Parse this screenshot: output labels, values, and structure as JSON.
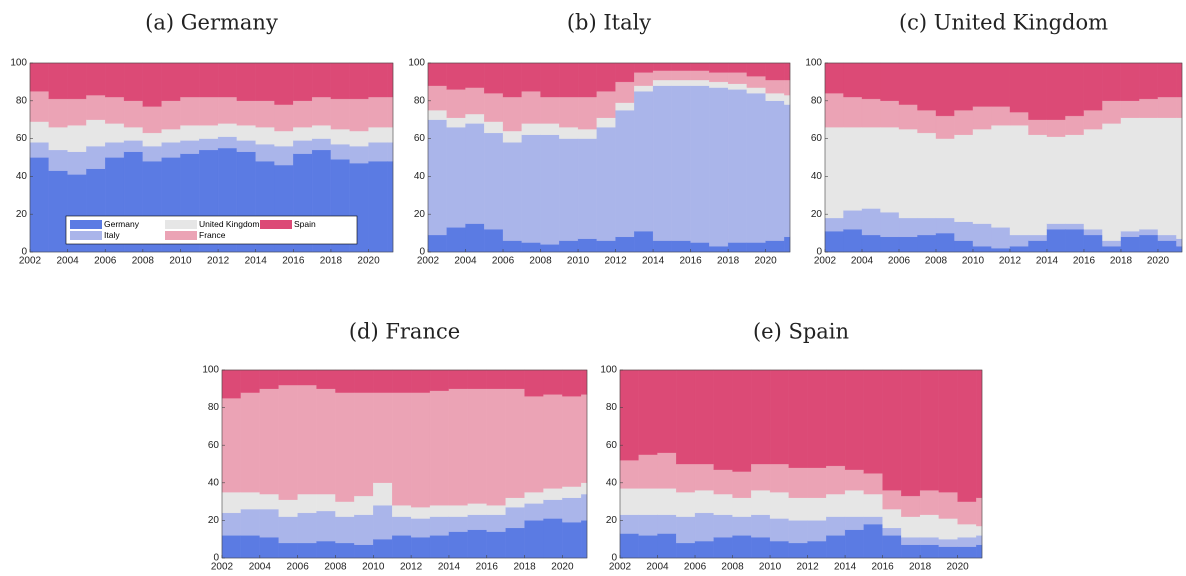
{
  "chart_data": [
    {
      "type": "stacked_bar",
      "title": "(a) Germany",
      "legend": "lower center",
      "x": [
        2002,
        2003,
        2004,
        2005,
        2006,
        2007,
        2008,
        2009,
        2010,
        2011,
        2012,
        2013,
        2014,
        2015,
        2016,
        2017,
        2018,
        2019,
        2020,
        2021
      ],
      "xlim": [
        2002,
        2021.3
      ],
      "xticks": [
        2002,
        2004,
        2006,
        2008,
        2010,
        2012,
        2014,
        2016,
        2018,
        2020
      ],
      "ylim": [
        0,
        100
      ],
      "yticks": [
        0,
        20,
        40,
        60,
        80,
        100
      ],
      "series": [
        {
          "name": "Germany",
          "color": "#5b7be3",
          "values": [
            50,
            43,
            41,
            44,
            50,
            53,
            48,
            50,
            52,
            54,
            55,
            53,
            48,
            46,
            52,
            54,
            49,
            47,
            48,
            48
          ]
        },
        {
          "name": "Italy",
          "color": "#aab5ea",
          "values": [
            8,
            11,
            12,
            12,
            8,
            6,
            8,
            8,
            7,
            6,
            6,
            6,
            9,
            10,
            7,
            6,
            8,
            9,
            10,
            10
          ]
        },
        {
          "name": "United Kingdom",
          "color": "#e6e6e6",
          "values": [
            11,
            12,
            14,
            14,
            10,
            7,
            7,
            7,
            8,
            7,
            7,
            8,
            9,
            8,
            7,
            7,
            8,
            8,
            8,
            8
          ]
        },
        {
          "name": "France",
          "color": "#eba3b5",
          "values": [
            16,
            15,
            14,
            13,
            14,
            14,
            14,
            15,
            15,
            15,
            14,
            13,
            14,
            14,
            14,
            15,
            16,
            17,
            16,
            16
          ]
        },
        {
          "name": "Spain",
          "color": "#dc4a76",
          "values": [
            15,
            19,
            19,
            17,
            18,
            20,
            23,
            20,
            18,
            18,
            18,
            20,
            20,
            22,
            20,
            18,
            19,
            19,
            18,
            18
          ]
        }
      ]
    },
    {
      "type": "stacked_bar",
      "title": "(b) Italy",
      "x": [
        2002,
        2003,
        2004,
        2005,
        2006,
        2007,
        2008,
        2009,
        2010,
        2011,
        2012,
        2013,
        2014,
        2015,
        2016,
        2017,
        2018,
        2019,
        2020,
        2021
      ],
      "xlim": [
        2002,
        2021.3
      ],
      "xticks": [
        2002,
        2004,
        2006,
        2008,
        2010,
        2012,
        2014,
        2016,
        2018,
        2020
      ],
      "ylim": [
        0,
        100
      ],
      "yticks": [
        0,
        20,
        40,
        60,
        80,
        100
      ],
      "series": [
        {
          "color": "#5b7be3",
          "values": [
            9,
            13,
            15,
            12,
            6,
            5,
            4,
            6,
            7,
            6,
            8,
            11,
            6,
            6,
            5,
            3,
            5,
            5,
            6,
            8
          ]
        },
        {
          "color": "#aab5ea",
          "values": [
            61,
            53,
            53,
            51,
            52,
            57,
            58,
            54,
            53,
            60,
            67,
            74,
            82,
            82,
            83,
            84,
            81,
            79,
            74,
            70
          ]
        },
        {
          "color": "#e6e6e6",
          "values": [
            5,
            5,
            5,
            6,
            6,
            6,
            6,
            6,
            5,
            5,
            4,
            3,
            3,
            3,
            3,
            3,
            3,
            3,
            4,
            5
          ]
        },
        {
          "color": "#eba3b5",
          "values": [
            13,
            15,
            14,
            15,
            18,
            17,
            14,
            16,
            17,
            14,
            11,
            7,
            5,
            5,
            5,
            5,
            6,
            6,
            7,
            8
          ]
        },
        {
          "color": "#dc4a76",
          "values": [
            12,
            14,
            13,
            16,
            18,
            15,
            18,
            18,
            18,
            15,
            10,
            5,
            4,
            4,
            4,
            5,
            5,
            7,
            9,
            9
          ]
        }
      ]
    },
    {
      "type": "stacked_bar",
      "title": "(c) United Kingdom",
      "x": [
        2002,
        2003,
        2004,
        2005,
        2006,
        2007,
        2008,
        2009,
        2010,
        2011,
        2012,
        2013,
        2014,
        2015,
        2016,
        2017,
        2018,
        2019,
        2020,
        2021
      ],
      "xlim": [
        2002,
        2021.3
      ],
      "xticks": [
        2002,
        2004,
        2006,
        2008,
        2010,
        2012,
        2014,
        2016,
        2018,
        2020
      ],
      "ylim": [
        0,
        100
      ],
      "yticks": [
        0,
        20,
        40,
        60,
        80,
        100
      ],
      "series": [
        {
          "color": "#5b7be3",
          "values": [
            11,
            12,
            9,
            8,
            8,
            9,
            10,
            6,
            3,
            2,
            3,
            6,
            12,
            12,
            9,
            3,
            8,
            9,
            6,
            3
          ]
        },
        {
          "color": "#aab5ea",
          "values": [
            7,
            10,
            14,
            13,
            10,
            9,
            8,
            10,
            12,
            11,
            6,
            3,
            3,
            3,
            3,
            3,
            3,
            3,
            3,
            4
          ]
        },
        {
          "color": "#e6e6e6",
          "values": [
            48,
            44,
            43,
            45,
            47,
            45,
            42,
            46,
            50,
            54,
            58,
            53,
            46,
            47,
            53,
            62,
            60,
            59,
            62,
            64
          ]
        },
        {
          "color": "#eba3b5",
          "values": [
            18,
            16,
            15,
            14,
            13,
            12,
            12,
            13,
            12,
            10,
            7,
            8,
            9,
            10,
            10,
            12,
            9,
            10,
            11,
            11
          ]
        },
        {
          "color": "#dc4a76",
          "values": [
            16,
            18,
            19,
            20,
            22,
            25,
            28,
            25,
            23,
            23,
            26,
            30,
            30,
            28,
            25,
            20,
            20,
            19,
            18,
            18
          ]
        }
      ]
    },
    {
      "type": "stacked_bar",
      "title": "(d) France",
      "x": [
        2002,
        2003,
        2004,
        2005,
        2006,
        2007,
        2008,
        2009,
        2010,
        2011,
        2012,
        2013,
        2014,
        2015,
        2016,
        2017,
        2018,
        2019,
        2020,
        2021
      ],
      "xlim": [
        2002,
        2021.3
      ],
      "xticks": [
        2002,
        2004,
        2006,
        2008,
        2010,
        2012,
        2014,
        2016,
        2018,
        2020
      ],
      "ylim": [
        0,
        100
      ],
      "yticks": [
        0,
        20,
        40,
        60,
        80,
        100
      ],
      "series": [
        {
          "color": "#5b7be3",
          "values": [
            12,
            12,
            11,
            8,
            8,
            9,
            8,
            7,
            10,
            12,
            11,
            12,
            14,
            15,
            14,
            16,
            20,
            21,
            19,
            20
          ]
        },
        {
          "color": "#aab5ea",
          "values": [
            12,
            14,
            15,
            14,
            16,
            16,
            14,
            16,
            18,
            10,
            10,
            10,
            8,
            8,
            9,
            11,
            9,
            10,
            13,
            14
          ]
        },
        {
          "color": "#e6e6e6",
          "values": [
            11,
            9,
            8,
            9,
            10,
            9,
            8,
            10,
            12,
            6,
            6,
            6,
            6,
            6,
            5,
            5,
            6,
            6,
            6,
            6
          ]
        },
        {
          "color": "#eba3b5",
          "values": [
            50,
            53,
            56,
            61,
            58,
            56,
            58,
            55,
            48,
            60,
            61,
            61,
            62,
            61,
            62,
            58,
            51,
            50,
            48,
            47
          ]
        },
        {
          "color": "#dc4a76",
          "values": [
            15,
            12,
            10,
            8,
            8,
            10,
            12,
            12,
            12,
            12,
            12,
            11,
            10,
            10,
            10,
            10,
            14,
            13,
            14,
            13
          ]
        }
      ]
    },
    {
      "type": "stacked_bar",
      "title": "(e) Spain",
      "x": [
        2002,
        2003,
        2004,
        2005,
        2006,
        2007,
        2008,
        2009,
        2010,
        2011,
        2012,
        2013,
        2014,
        2015,
        2016,
        2017,
        2018,
        2019,
        2020,
        2021
      ],
      "xlim": [
        2002,
        2021.3
      ],
      "xticks": [
        2002,
        2004,
        2006,
        2008,
        2010,
        2012,
        2014,
        2016,
        2018,
        2020
      ],
      "ylim": [
        0,
        100
      ],
      "yticks": [
        0,
        20,
        40,
        60,
        80,
        100
      ],
      "series": [
        {
          "color": "#5b7be3",
          "values": [
            13,
            12,
            13,
            8,
            9,
            11,
            12,
            11,
            9,
            8,
            9,
            12,
            15,
            18,
            12,
            7,
            7,
            6,
            6,
            7
          ]
        },
        {
          "color": "#aab5ea",
          "values": [
            10,
            11,
            10,
            14,
            15,
            12,
            10,
            12,
            12,
            12,
            11,
            10,
            7,
            4,
            4,
            4,
            4,
            4,
            5,
            5
          ]
        },
        {
          "color": "#e6e6e6",
          "values": [
            14,
            14,
            14,
            13,
            12,
            11,
            10,
            13,
            14,
            12,
            12,
            12,
            14,
            12,
            10,
            11,
            12,
            11,
            7,
            5
          ]
        },
        {
          "color": "#eba3b5",
          "values": [
            15,
            18,
            19,
            15,
            14,
            13,
            14,
            14,
            15,
            16,
            16,
            15,
            11,
            11,
            10,
            11,
            13,
            14,
            12,
            15
          ]
        },
        {
          "color": "#dc4a76",
          "values": [
            48,
            45,
            44,
            50,
            50,
            53,
            54,
            50,
            50,
            52,
            52,
            51,
            53,
            55,
            64,
            67,
            64,
            65,
            70,
            68
          ]
        }
      ]
    }
  ]
}
